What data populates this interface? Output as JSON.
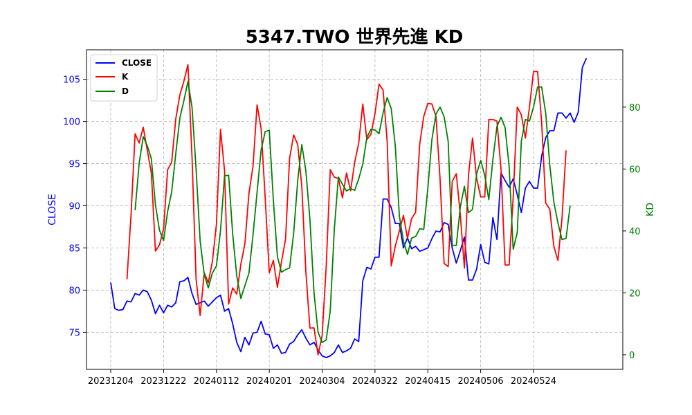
{
  "chart_data": {
    "type": "line",
    "title": "5347.TWO 世界先進 KD",
    "xlabel": "",
    "ylabel_left": "CLOSE",
    "ylabel_right": "KD",
    "grid": true,
    "legend_position": "top-left",
    "x_tick_labels": [
      "20231204",
      "20231222",
      "20240112",
      "20240201",
      "20240304",
      "20240322",
      "20240415",
      "20240506",
      "20240524"
    ],
    "x_tick_index": [
      0,
      13,
      26,
      39,
      52,
      65,
      78,
      91,
      104
    ],
    "y_left": {
      "range": [
        70.6,
        108.5
      ],
      "ticks": [
        75,
        80,
        85,
        90,
        95,
        100,
        105
      ],
      "color": "#0000ff"
    },
    "y_right": {
      "range": [
        -4.7,
        98.5
      ],
      "ticks": [
        0,
        20,
        40,
        60,
        80
      ],
      "color": "#008000"
    },
    "series": [
      {
        "name": "CLOSE",
        "axis": "left",
        "color": "#0000ff",
        "values": [
          80.9,
          77.8,
          77.6,
          77.7,
          78.7,
          78.6,
          79.6,
          79.4,
          80.0,
          79.8,
          78.8,
          77.2,
          78.2,
          77.3,
          78.2,
          78.0,
          78.5,
          81.0,
          81.1,
          81.5,
          79.6,
          78.3,
          78.5,
          78.7,
          78.1,
          78.6,
          79.1,
          79.4,
          77.5,
          77.8,
          76.0,
          73.8,
          72.7,
          74.4,
          73.5,
          74.9,
          75.0,
          76.3,
          74.8,
          74.7,
          73.1,
          73.5,
          72.5,
          72.6,
          73.6,
          73.9,
          74.7,
          75.3,
          74.3,
          73.5,
          73.8,
          72.9,
          72.2,
          72.0,
          72.2,
          72.6,
          73.5,
          72.6,
          72.8,
          73.1,
          74.2,
          73.9,
          81.1,
          82.7,
          82.5,
          83.9,
          83.9,
          90.8,
          90.8,
          89.8,
          87.9,
          87.9,
          85.0,
          86.2,
          84.9,
          85.2,
          84.6,
          84.8,
          85.0,
          86.1,
          87.0,
          86.9,
          88.0,
          87.8,
          85.0,
          83.2,
          84.7,
          86.3,
          81.2,
          81.2,
          82.5,
          85.4,
          83.3,
          83.1,
          88.6,
          86.0,
          93.9,
          93.0,
          92.2,
          93.2,
          91.3,
          89.2,
          92.1,
          92.9,
          92.1,
          92.1,
          95.9,
          98.1,
          98.9,
          98.9,
          101.0,
          101.0,
          100.4,
          101.0,
          99.9,
          101.1,
          106.4,
          107.5
        ]
      },
      {
        "name": "K",
        "axis": "right",
        "color": "#ff0000",
        "start_index": 4,
        "values": [
          24.4,
          45.2,
          71.4,
          68.4,
          73.5,
          66.0,
          58.7,
          33.5,
          35.5,
          40.7,
          59.8,
          62.2,
          76.2,
          83.9,
          88.4,
          93.7,
          63.8,
          24.4,
          12.7,
          26.4,
          23.3,
          30.1,
          42.1,
          72.8,
          59.5,
          16.4,
          21.6,
          19.6,
          29.2,
          35.8,
          52.1,
          60.9,
          80.7,
          73.0,
          50.6,
          26.5,
          30.5,
          21.8,
          30.0,
          37.3,
          63.5,
          71.0,
          67.9,
          54.4,
          26.8,
          8.6,
          8.7,
          0.0,
          6.1,
          28.5,
          59.8,
          57.4,
          56.9,
          50.7,
          58.7,
          53.0,
          62.1,
          68.4,
          81.0,
          69.5,
          71.2,
          77.9,
          87.4,
          85.5,
          68.9,
          28.7,
          35.1,
          40.0,
          45.0,
          37.6,
          44.0,
          46.0,
          68.0,
          77.0,
          81.2,
          81.0,
          77.0,
          57.0,
          29.5,
          28.5,
          56.0,
          58.5,
          45.0,
          28.0,
          58.0,
          70.0,
          57.0,
          51.0,
          51.0,
          76.0,
          76.0,
          75.5,
          60.0,
          29.0,
          29.0,
          51.0,
          80.0,
          77.5,
          70.0,
          80.0,
          91.5,
          91.5,
          75.0,
          49.0,
          47.0,
          35.0,
          30.5,
          44.0,
          66.0
        ]
      },
      {
        "name": "D",
        "axis": "right",
        "color": "#008000",
        "start_index": 6,
        "values": [
          46.7,
          61.9,
          70.4,
          67.5,
          63.3,
          48.4,
          40.2,
          36.9,
          46.3,
          52.7,
          65.0,
          76.4,
          82.1,
          88.3,
          79.9,
          59.9,
          36.7,
          26.0,
          21.6,
          26.4,
          28.7,
          40.0,
          57.8,
          58.0,
          39.0,
          25.5,
          18.2,
          22.3,
          26.4,
          38.7,
          52.5,
          66.2,
          72.1,
          72.5,
          50.0,
          31.7,
          26.7,
          27.5,
          28.1,
          39.3,
          56.3,
          67.9,
          59.4,
          43.7,
          20.1,
          7.3,
          4.0,
          4.8,
          14.2,
          40.6,
          57.4,
          55.1,
          52.9,
          53.7,
          53.1,
          56.8,
          61.6,
          70.2,
          72.8,
          72.6,
          71.4,
          78.2,
          83.1,
          79.5,
          67.4,
          44.8,
          36.7,
          32.4,
          37.7,
          38.2,
          40.7,
          40.5,
          53.8,
          69.5,
          77.8,
          80.0,
          76.9,
          69.0,
          35.4,
          35.3,
          47.9,
          54.4,
          45.9,
          47.0,
          58.4,
          62.8,
          57.9,
          50.1,
          63.0,
          73.8,
          76.7,
          73.4,
          60.8,
          34.1,
          39.5,
          69.0,
          76.0,
          75.5,
          80.0,
          86.5,
          86.5,
          78.0,
          61.2,
          49.3,
          42.6,
          37.2,
          37.6,
          48.2
        ]
      }
    ]
  }
}
